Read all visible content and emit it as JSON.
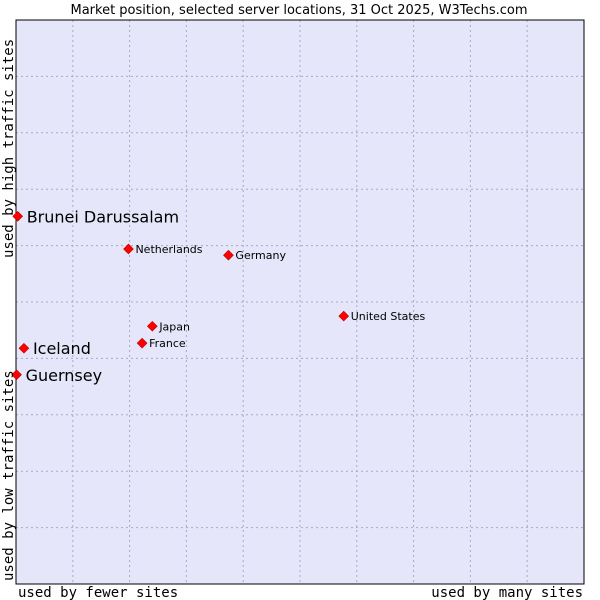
{
  "chart_data": {
    "type": "scatter",
    "title": "Market position, selected server locations, 31 Oct 2025, W3Techs.com",
    "xlabel_low": "used by fewer sites",
    "xlabel_high": "used by many sites",
    "ylabel_low": "used by low traffic sites",
    "ylabel_high": "used by high traffic sites",
    "xlim": [
      0,
      100
    ],
    "ylim": [
      0,
      100
    ],
    "grid": true,
    "colors": {
      "plot_bg": "#e6e6fa",
      "grid": "#a8a8c8",
      "border": "#000000",
      "marker": "#ff0000",
      "marker_edge": "#aa0000"
    },
    "points": [
      {
        "name": "Brunei Darussalam",
        "x": 0.3,
        "y": 65.2,
        "emphasis": true
      },
      {
        "name": "Netherlands",
        "x": 19.8,
        "y": 59.4,
        "emphasis": false
      },
      {
        "name": "Germany",
        "x": 37.4,
        "y": 58.3,
        "emphasis": false
      },
      {
        "name": "United States",
        "x": 57.7,
        "y": 47.5,
        "emphasis": false
      },
      {
        "name": "Japan",
        "x": 24.0,
        "y": 45.7,
        "emphasis": false
      },
      {
        "name": "France",
        "x": 22.2,
        "y": 42.7,
        "emphasis": false
      },
      {
        "name": "Iceland",
        "x": 1.4,
        "y": 41.8,
        "emphasis": true
      },
      {
        "name": "Guernsey",
        "x": 0.1,
        "y": 37.1,
        "emphasis": true
      }
    ]
  }
}
